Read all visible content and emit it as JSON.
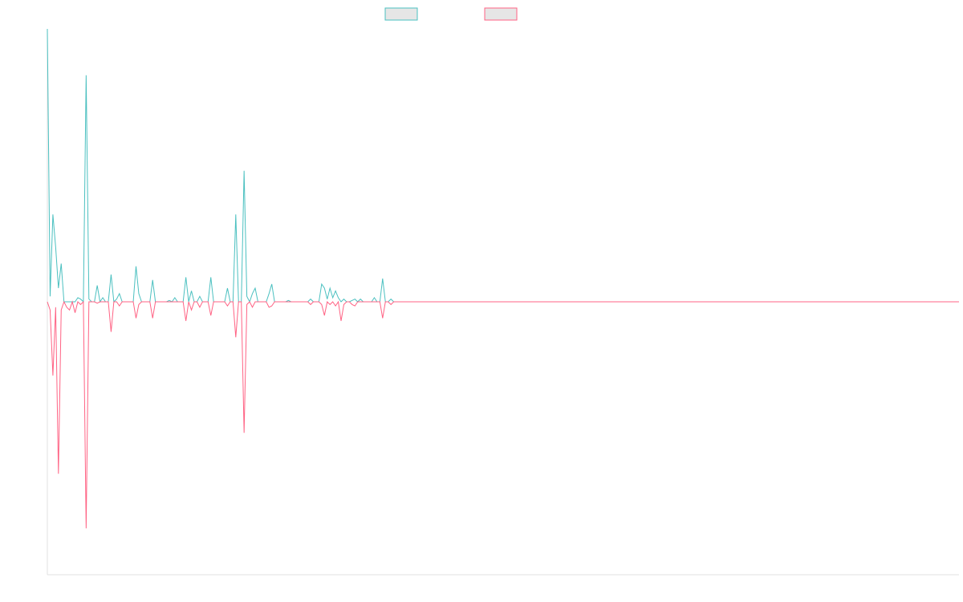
{
  "chart_data": {
    "type": "line",
    "title": "",
    "xlabel": "",
    "ylabel": "",
    "x_count": 330,
    "ylim": [
      -100,
      100
    ],
    "grid": false,
    "legend_placement": "top-center",
    "series": [
      {
        "color": "#4bc0c0",
        "points": [
          [
            0,
            100
          ],
          [
            1,
            2
          ],
          [
            2,
            32
          ],
          [
            3,
            20
          ],
          [
            4,
            5
          ],
          [
            5,
            14
          ],
          [
            6,
            0
          ],
          [
            7,
            0
          ],
          [
            8,
            0
          ],
          [
            9,
            0
          ],
          [
            10,
            0
          ],
          [
            11,
            1.5
          ],
          [
            12,
            1
          ],
          [
            13,
            0
          ],
          [
            14,
            0
          ],
          [
            15,
            1
          ],
          [
            16,
            0
          ],
          [
            17,
            0
          ],
          [
            18,
            0
          ],
          [
            19,
            0
          ],
          [
            20,
            0
          ],
          [
            21,
            0
          ],
          [
            22,
            0
          ],
          [
            23,
            0
          ],
          [
            24,
            0
          ],
          [
            25,
            0
          ],
          [
            26,
            0
          ],
          [
            27,
            0
          ],
          [
            28,
            0
          ],
          [
            29,
            0
          ],
          [
            30,
            0
          ],
          [
            31,
            0
          ],
          [
            32,
            0
          ],
          [
            33,
            0
          ],
          [
            34,
            0
          ],
          [
            35,
            0
          ],
          [
            36,
            0
          ],
          [
            37,
            0
          ],
          [
            38,
            0
          ],
          [
            39,
            0
          ],
          [
            40,
            0
          ],
          [
            41,
            0
          ],
          [
            42,
            0
          ],
          [
            43,
            0
          ],
          [
            44,
            0
          ],
          [
            45,
            0
          ],
          [
            46,
            0
          ],
          [
            47,
            0
          ],
          [
            48,
            0
          ],
          [
            49,
            0
          ],
          [
            50,
            0
          ],
          [
            51,
            0
          ],
          [
            52,
            0
          ],
          [
            53,
            0
          ],
          [
            54,
            0
          ],
          [
            55,
            0
          ],
          [
            56,
            0
          ],
          [
            57,
            0
          ],
          [
            58,
            0
          ],
          [
            59,
            0
          ],
          [
            60,
            0
          ],
          [
            61,
            0
          ],
          [
            62,
            0
          ],
          [
            63,
            0
          ],
          [
            64,
            0
          ],
          [
            65,
            0
          ],
          [
            66,
            0
          ],
          [
            67,
            0
          ],
          [
            68,
            0
          ],
          [
            69,
            0
          ],
          [
            70,
            0
          ],
          [
            71,
            0
          ],
          [
            72,
            0
          ],
          [
            73,
            0
          ],
          [
            74,
            0
          ],
          [
            75,
            0
          ],
          [
            76,
            0
          ],
          [
            77,
            0
          ],
          [
            78,
            0
          ],
          [
            79,
            0
          ]
        ],
        "spikes": [
          [
            14,
            83
          ],
          [
            18,
            6
          ],
          [
            20,
            1.5
          ],
          [
            23,
            10
          ],
          [
            25,
            1
          ],
          [
            26,
            3
          ],
          [
            32,
            13
          ],
          [
            33,
            3
          ],
          [
            38,
            8
          ],
          [
            44,
            0.5
          ],
          [
            46,
            1.5
          ],
          [
            50,
            9
          ],
          [
            52,
            4
          ],
          [
            55,
            2
          ],
          [
            59,
            9
          ],
          [
            65,
            5
          ],
          [
            68,
            32
          ],
          [
            71,
            48
          ],
          [
            72,
            2
          ],
          [
            74,
            3
          ],
          [
            75,
            5
          ],
          [
            80,
            3
          ],
          [
            81,
            6.5
          ],
          [
            87,
            0.5
          ],
          [
            95,
            1
          ],
          [
            99,
            6.5
          ],
          [
            100,
            5
          ],
          [
            101,
            1
          ],
          [
            102,
            5
          ],
          [
            103,
            1.5
          ],
          [
            104,
            4
          ],
          [
            105,
            1.5
          ],
          [
            107,
            1
          ],
          [
            110,
            0.5
          ],
          [
            111,
            1
          ],
          [
            113,
            1
          ],
          [
            118,
            1.5
          ],
          [
            121,
            8.5
          ],
          [
            124,
            1
          ]
        ]
      },
      {
        "color": "#ff6384",
        "points": [
          [
            0,
            0
          ],
          [
            1,
            -3
          ],
          [
            2,
            -27
          ],
          [
            3,
            -2
          ],
          [
            4,
            -63
          ],
          [
            5,
            -3
          ],
          [
            6,
            0
          ],
          [
            7,
            -2
          ],
          [
            8,
            -3
          ],
          [
            9,
            0
          ],
          [
            10,
            -4
          ],
          [
            11,
            0
          ],
          [
            12,
            -1
          ],
          [
            13,
            0
          ],
          [
            14,
            -83
          ]
        ],
        "spikes": [
          [
            18,
            -0.5
          ],
          [
            23,
            -11
          ],
          [
            26,
            -1.5
          ],
          [
            32,
            -6
          ],
          [
            33,
            -1
          ],
          [
            38,
            -6
          ],
          [
            50,
            -7
          ],
          [
            52,
            -3
          ],
          [
            55,
            -2
          ],
          [
            59,
            -5
          ],
          [
            65,
            -1.5
          ],
          [
            68,
            -13
          ],
          [
            71,
            -48
          ],
          [
            72,
            -1
          ],
          [
            74,
            -2
          ],
          [
            80,
            -2
          ],
          [
            81,
            -1.5
          ],
          [
            95,
            -1
          ],
          [
            99,
            -1
          ],
          [
            100,
            -5
          ],
          [
            102,
            -1
          ],
          [
            104,
            -1.5
          ],
          [
            106,
            -7
          ],
          [
            107,
            -1
          ],
          [
            110,
            -1
          ],
          [
            111,
            -1.5
          ],
          [
            121,
            -6
          ],
          [
            124,
            -1
          ]
        ]
      }
    ]
  }
}
